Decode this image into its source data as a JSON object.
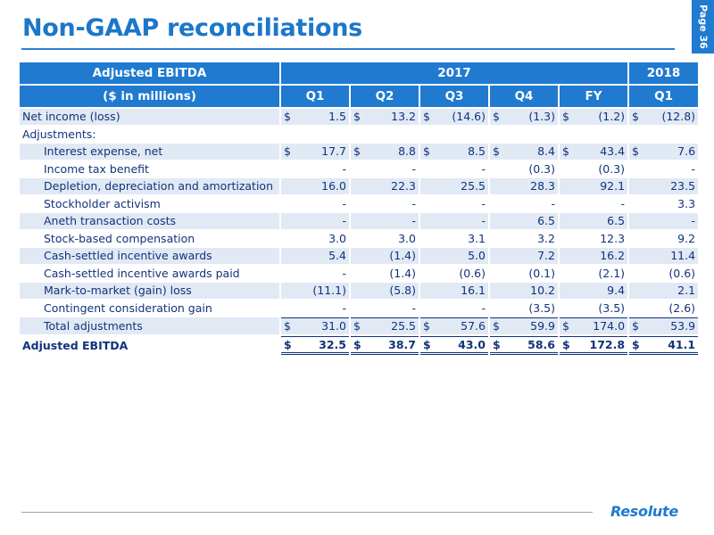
{
  "page": {
    "title": "Non-GAAP reconciliations",
    "page_label": "Page 36",
    "logo_text": "Resolute"
  },
  "table": {
    "header_row1": {
      "label": "Adjusted EBITDA",
      "year_2017": "2017",
      "year_2018": "2018"
    },
    "header_row2": {
      "label": "($ in millions)",
      "cols": [
        "Q1",
        "Q2",
        "Q3",
        "Q4",
        "FY",
        "Q1"
      ]
    },
    "rows": [
      {
        "label": "Net income (loss)",
        "indent": false,
        "kind": "",
        "cells": [
          {
            "sym": "$",
            "val": "1.5"
          },
          {
            "sym": "$",
            "val": "13.2"
          },
          {
            "sym": "$",
            "val": "(14.6)"
          },
          {
            "sym": "$",
            "val": "(1.3)"
          },
          {
            "sym": "$",
            "val": "(1.2)"
          },
          {
            "sym": "$",
            "val": "(12.8)"
          }
        ]
      },
      {
        "label": "Adjustments:",
        "indent": false,
        "kind": "",
        "cells": [
          {
            "sym": "",
            "val": ""
          },
          {
            "sym": "",
            "val": ""
          },
          {
            "sym": "",
            "val": ""
          },
          {
            "sym": "",
            "val": ""
          },
          {
            "sym": "",
            "val": ""
          },
          {
            "sym": "",
            "val": ""
          }
        ]
      },
      {
        "label": "Interest expense, net",
        "indent": true,
        "kind": "",
        "cells": [
          {
            "sym": "$",
            "val": "17.7"
          },
          {
            "sym": "$",
            "val": "8.8"
          },
          {
            "sym": "$",
            "val": "8.5"
          },
          {
            "sym": "$",
            "val": "8.4"
          },
          {
            "sym": "$",
            "val": "43.4"
          },
          {
            "sym": "$",
            "val": "7.6"
          }
        ]
      },
      {
        "label": "Income tax benefit",
        "indent": true,
        "kind": "",
        "cells": [
          {
            "sym": "",
            "val": "-"
          },
          {
            "sym": "",
            "val": "-"
          },
          {
            "sym": "",
            "val": "-"
          },
          {
            "sym": "",
            "val": "(0.3)"
          },
          {
            "sym": "",
            "val": "(0.3)"
          },
          {
            "sym": "",
            "val": "-"
          }
        ]
      },
      {
        "label": "Depletion, depreciation and amortization",
        "indent": true,
        "kind": "",
        "cells": [
          {
            "sym": "",
            "val": "16.0"
          },
          {
            "sym": "",
            "val": "22.3"
          },
          {
            "sym": "",
            "val": "25.5"
          },
          {
            "sym": "",
            "val": "28.3"
          },
          {
            "sym": "",
            "val": "92.1"
          },
          {
            "sym": "",
            "val": "23.5"
          }
        ]
      },
      {
        "label": "Stockholder activism",
        "indent": true,
        "kind": "",
        "cells": [
          {
            "sym": "",
            "val": "-"
          },
          {
            "sym": "",
            "val": "-"
          },
          {
            "sym": "",
            "val": "-"
          },
          {
            "sym": "",
            "val": "-"
          },
          {
            "sym": "",
            "val": "-"
          },
          {
            "sym": "",
            "val": "3.3"
          }
        ]
      },
      {
        "label": "Aneth transaction costs",
        "indent": true,
        "kind": "",
        "cells": [
          {
            "sym": "",
            "val": "-"
          },
          {
            "sym": "",
            "val": "-"
          },
          {
            "sym": "",
            "val": "-"
          },
          {
            "sym": "",
            "val": "6.5"
          },
          {
            "sym": "",
            "val": "6.5"
          },
          {
            "sym": "",
            "val": "-"
          }
        ]
      },
      {
        "label": "Stock-based compensation",
        "indent": true,
        "kind": "",
        "cells": [
          {
            "sym": "",
            "val": "3.0"
          },
          {
            "sym": "",
            "val": "3.0"
          },
          {
            "sym": "",
            "val": "3.1"
          },
          {
            "sym": "",
            "val": "3.2"
          },
          {
            "sym": "",
            "val": "12.3"
          },
          {
            "sym": "",
            "val": "9.2"
          }
        ]
      },
      {
        "label": "Cash-settled incentive awards",
        "indent": true,
        "kind": "",
        "cells": [
          {
            "sym": "",
            "val": "5.4"
          },
          {
            "sym": "",
            "val": "(1.4)"
          },
          {
            "sym": "",
            "val": "5.0"
          },
          {
            "sym": "",
            "val": "7.2"
          },
          {
            "sym": "",
            "val": "16.2"
          },
          {
            "sym": "",
            "val": "11.4"
          }
        ]
      },
      {
        "label": "Cash-settled incentive awards paid",
        "indent": true,
        "kind": "",
        "cells": [
          {
            "sym": "",
            "val": "-"
          },
          {
            "sym": "",
            "val": "(1.4)"
          },
          {
            "sym": "",
            "val": "(0.6)"
          },
          {
            "sym": "",
            "val": "(0.1)"
          },
          {
            "sym": "",
            "val": "(2.1)"
          },
          {
            "sym": "",
            "val": "(0.6)"
          }
        ]
      },
      {
        "label": "Mark-to-market (gain) loss",
        "indent": true,
        "kind": "",
        "cells": [
          {
            "sym": "",
            "val": "(11.1)"
          },
          {
            "sym": "",
            "val": "(5.8)"
          },
          {
            "sym": "",
            "val": "16.1"
          },
          {
            "sym": "",
            "val": "10.2"
          },
          {
            "sym": "",
            "val": "9.4"
          },
          {
            "sym": "",
            "val": "2.1"
          }
        ]
      },
      {
        "label": "Contingent consideration gain",
        "indent": true,
        "kind": "",
        "cells": [
          {
            "sym": "",
            "val": "-"
          },
          {
            "sym": "",
            "val": "-"
          },
          {
            "sym": "",
            "val": "-"
          },
          {
            "sym": "",
            "val": "(3.5)"
          },
          {
            "sym": "",
            "val": "(3.5)"
          },
          {
            "sym": "",
            "val": "(2.6)"
          }
        ]
      },
      {
        "label": "Total adjustments",
        "indent": true,
        "kind": "total",
        "cells": [
          {
            "sym": "$",
            "val": "31.0"
          },
          {
            "sym": "$",
            "val": "25.5"
          },
          {
            "sym": "$",
            "val": "57.6"
          },
          {
            "sym": "$",
            "val": "59.9"
          },
          {
            "sym": "$",
            "val": "174.0"
          },
          {
            "sym": "$",
            "val": "53.9"
          }
        ]
      },
      {
        "label": "Adjusted EBITDA",
        "indent": false,
        "kind": "grand",
        "cells": [
          {
            "sym": "$",
            "val": "32.5"
          },
          {
            "sym": "$",
            "val": "38.7"
          },
          {
            "sym": "$",
            "val": "43.0"
          },
          {
            "sym": "$",
            "val": "58.6"
          },
          {
            "sym": "$",
            "val": "172.8"
          },
          {
            "sym": "$",
            "val": "41.1"
          }
        ]
      }
    ]
  }
}
